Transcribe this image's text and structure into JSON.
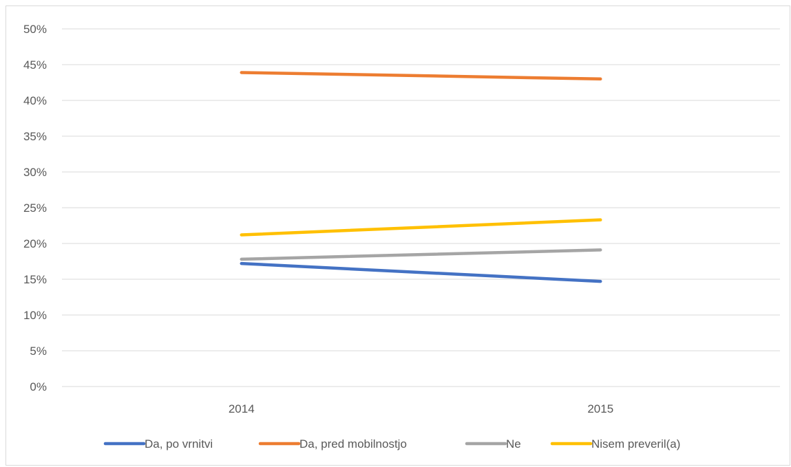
{
  "chart_data": {
    "type": "line",
    "x": [
      "2014",
      "2015"
    ],
    "ylim": [
      0,
      50
    ],
    "yticks": [
      "0%",
      "5%",
      "10%",
      "15%",
      "20%",
      "25%",
      "30%",
      "35%",
      "40%",
      "45%",
      "50%"
    ],
    "grid": true,
    "legend_position": "bottom",
    "series": [
      {
        "name": "Da, po vrnitvi",
        "values": [
          17.2,
          14.7
        ],
        "color": "#4472C4"
      },
      {
        "name": "Da, pred mobilnostjo",
        "values": [
          43.9,
          43.0
        ],
        "color": "#ED7D31"
      },
      {
        "name": "Ne",
        "values": [
          17.8,
          19.1
        ],
        "color": "#A5A5A5"
      },
      {
        "name": "Nisem preveril(a)",
        "values": [
          21.2,
          23.3
        ],
        "color": "#FFC000"
      }
    ]
  }
}
